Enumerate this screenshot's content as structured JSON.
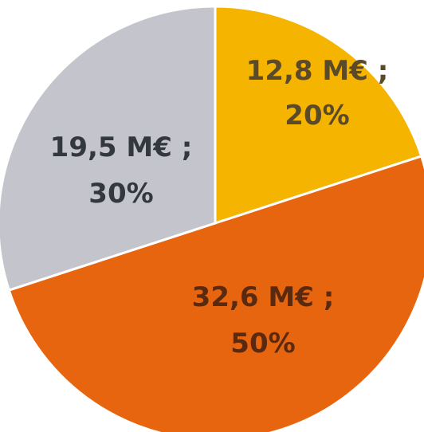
{
  "chart_data": {
    "type": "pie",
    "start_angle_deg": 0,
    "direction": "clockwise",
    "slices": [
      {
        "value": 12.8,
        "unit": "M€",
        "percent": 20,
        "line1": "12,8 M€ ;",
        "line2": "20%",
        "color": "#F5B400",
        "label_color": "#5A4A2A"
      },
      {
        "value": 32.6,
        "unit": "M€",
        "percent": 50,
        "line1": "32,6 M€ ;",
        "line2": "50%",
        "color": "#E8650F",
        "label_color": "#5A2A10"
      },
      {
        "value": 19.5,
        "unit": "M€",
        "percent": 30,
        "line1": "19,5 M€ ;",
        "line2": "30%",
        "color": "#C4C4CC",
        "label_color": "#333840"
      }
    ]
  }
}
